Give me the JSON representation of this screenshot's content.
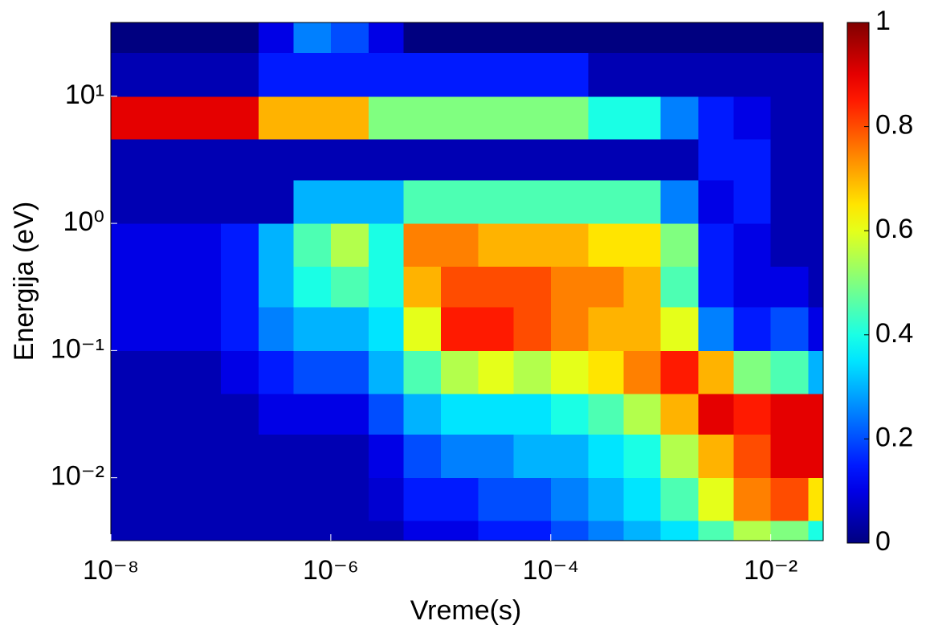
{
  "chart_data": {
    "type": "heatmap",
    "xlabel": "Vreme(s)",
    "ylabel": "Energija (eV)",
    "xscale": "log",
    "yscale": "log",
    "colormap": "jet",
    "xlim": [
      1e-08,
      0.03
    ],
    "ylim": [
      0.0032,
      38
    ],
    "xticks": [
      {
        "value": 1e-08,
        "label": "10⁻⁸"
      },
      {
        "value": 1e-06,
        "label": "10⁻⁶"
      },
      {
        "value": 0.0001,
        "label": "10⁻⁴"
      },
      {
        "value": 0.01,
        "label": "10⁻²"
      }
    ],
    "yticks": [
      {
        "value": 0.01,
        "label": "10⁻²"
      },
      {
        "value": 0.1,
        "label": "10⁻¹"
      },
      {
        "value": 1,
        "label": "10⁰"
      },
      {
        "value": 10,
        "label": "10¹"
      }
    ],
    "clim": [
      0,
      1
    ],
    "cticks": [
      0,
      0.2,
      0.4,
      0.6,
      0.8,
      1
    ],
    "xbins": [
      1e-08,
      2.2e-08,
      4.6e-08,
      1e-07,
      2.2e-07,
      4.6e-07,
      1e-06,
      2.2e-06,
      4.6e-06,
      1e-05,
      2.2e-05,
      4.6e-05,
      0.0001,
      0.00022,
      0.00046,
      0.001,
      0.0022,
      0.0046,
      0.01,
      0.022,
      0.03
    ],
    "ybins": [
      0.0032,
      0.0046,
      0.01,
      0.022,
      0.046,
      0.1,
      0.22,
      0.46,
      1,
      2.2,
      4.6,
      10,
      22,
      38
    ],
    "z": [
      [
        0.05,
        0.05,
        0.05,
        0.05,
        0.05,
        0.05,
        0.05,
        0.05,
        0.1,
        0.1,
        0.15,
        0.15,
        0.2,
        0.25,
        0.3,
        0.35,
        0.45,
        0.55,
        0.5,
        0.4
      ],
      [
        0.05,
        0.05,
        0.05,
        0.05,
        0.05,
        0.05,
        0.05,
        0.08,
        0.15,
        0.15,
        0.2,
        0.2,
        0.25,
        0.3,
        0.35,
        0.45,
        0.6,
        0.75,
        0.8,
        0.65
      ],
      [
        0.05,
        0.05,
        0.05,
        0.05,
        0.05,
        0.05,
        0.05,
        0.1,
        0.2,
        0.25,
        0.25,
        0.3,
        0.3,
        0.35,
        0.4,
        0.55,
        0.7,
        0.8,
        0.9,
        0.9
      ],
      [
        0.05,
        0.05,
        0.05,
        0.05,
        0.1,
        0.1,
        0.1,
        0.2,
        0.3,
        0.35,
        0.35,
        0.35,
        0.4,
        0.45,
        0.55,
        0.7,
        0.9,
        0.85,
        0.9,
        0.9
      ],
      [
        0.05,
        0.05,
        0.05,
        0.1,
        0.15,
        0.2,
        0.2,
        0.3,
        0.45,
        0.55,
        0.6,
        0.55,
        0.6,
        0.65,
        0.75,
        0.85,
        0.7,
        0.5,
        0.45,
        0.3
      ],
      [
        0.1,
        0.1,
        0.1,
        0.15,
        0.25,
        0.3,
        0.3,
        0.35,
        0.6,
        0.85,
        0.85,
        0.8,
        0.75,
        0.7,
        0.7,
        0.6,
        0.25,
        0.15,
        0.2,
        0.1
      ],
      [
        0.1,
        0.1,
        0.1,
        0.15,
        0.3,
        0.4,
        0.45,
        0.4,
        0.7,
        0.8,
        0.8,
        0.8,
        0.75,
        0.75,
        0.7,
        0.45,
        0.15,
        0.1,
        0.1,
        0.05
      ],
      [
        0.1,
        0.1,
        0.1,
        0.15,
        0.3,
        0.45,
        0.55,
        0.4,
        0.75,
        0.75,
        0.7,
        0.7,
        0.7,
        0.65,
        0.65,
        0.5,
        0.15,
        0.1,
        0.05,
        0.05
      ],
      [
        0.05,
        0.05,
        0.05,
        0.05,
        0.05,
        0.3,
        0.3,
        0.3,
        0.45,
        0.45,
        0.45,
        0.45,
        0.45,
        0.45,
        0.45,
        0.25,
        0.1,
        0.15,
        0.05,
        0.05
      ],
      [
        0.05,
        0.05,
        0.05,
        0.05,
        0.05,
        0.05,
        0.05,
        0.05,
        0.05,
        0.05,
        0.05,
        0.05,
        0.05,
        0.05,
        0.05,
        0.05,
        0.15,
        0.15,
        0.05,
        0.05
      ],
      [
        0.9,
        0.9,
        0.9,
        0.9,
        0.7,
        0.7,
        0.7,
        0.5,
        0.5,
        0.5,
        0.5,
        0.5,
        0.5,
        0.4,
        0.4,
        0.25,
        0.15,
        0.1,
        0.05,
        0.05
      ],
      [
        0.05,
        0.05,
        0.05,
        0.05,
        0.15,
        0.15,
        0.15,
        0.15,
        0.15,
        0.15,
        0.15,
        0.15,
        0.15,
        0.05,
        0.05,
        0.05,
        0.05,
        0.05,
        0.05,
        0.05
      ],
      [
        0,
        0,
        0,
        0,
        0.1,
        0.25,
        0.2,
        0.1,
        0,
        0,
        0,
        0,
        0,
        0,
        0,
        0,
        0,
        0,
        0,
        0
      ]
    ]
  }
}
